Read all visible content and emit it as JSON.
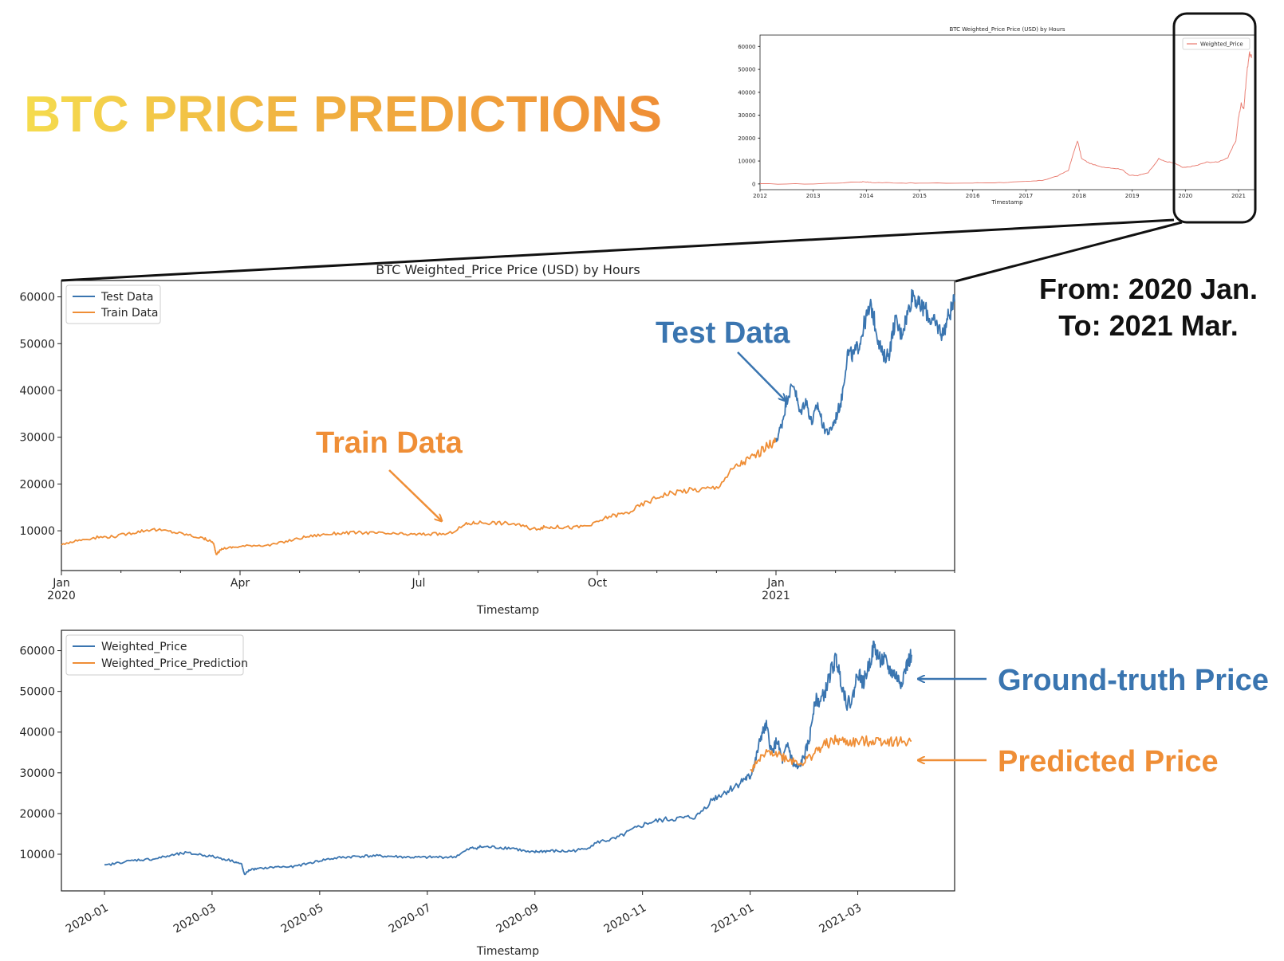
{
  "page": {
    "title": "BTC PRICE PREDICTIONS",
    "range_from": "From: 2020 Jan.",
    "range_to": "To: 2021 Mar."
  },
  "annotations": {
    "test": "Test Data",
    "train": "Train Data",
    "ground_truth": "Ground-truth Price",
    "predicted": "Predicted Price"
  },
  "colors": {
    "blue": "#3a75b0",
    "orange": "#ef8e36",
    "red": "#e8766a",
    "title_start": "#f5dc4e",
    "title_end": "#ef8e36"
  },
  "chart_data": [
    {
      "id": "overview",
      "type": "line",
      "title": "BTC Weighted_Price Price (USD) by Hours",
      "xlabel": "Timestamp",
      "ylabel": "",
      "x_ticks": [
        "2012",
        "2013",
        "2014",
        "2015",
        "2016",
        "2017",
        "2018",
        "2019",
        "2020",
        "2021"
      ],
      "y_ticks": [
        0,
        10000,
        20000,
        30000,
        40000,
        50000,
        60000
      ],
      "xlim": [
        2012.0,
        2021.3
      ],
      "ylim": [
        -2500,
        65000
      ],
      "grid": false,
      "legend": "top-right",
      "series": [
        {
          "name": "Weighted_Price",
          "color": "#e8766a",
          "x": [
            2012.0,
            2013.0,
            2013.85,
            2013.95,
            2014.1,
            2014.5,
            2015.0,
            2016.0,
            2016.5,
            2017.0,
            2017.3,
            2017.6,
            2017.8,
            2017.97,
            2018.05,
            2018.2,
            2018.4,
            2018.6,
            2018.8,
            2018.95,
            2019.1,
            2019.3,
            2019.5,
            2019.6,
            2019.8,
            2019.95,
            2020.0,
            2020.2,
            2020.4,
            2020.6,
            2020.8,
            2020.95,
            2021.0,
            2021.05,
            2021.1,
            2021.15,
            2021.2,
            2021.25
          ],
          "values": [
            5,
            13,
            800,
            1000,
            600,
            500,
            300,
            400,
            600,
            1000,
            1500,
            3500,
            6000,
            19000,
            11000,
            9000,
            7500,
            7000,
            6400,
            3800,
            3600,
            5000,
            11000,
            10000,
            9000,
            7200,
            7200,
            8000,
            9500,
            9500,
            11500,
            19000,
            29000,
            35000,
            33000,
            47000,
            57000,
            55000
          ]
        }
      ]
    },
    {
      "id": "train-test",
      "type": "line",
      "title": "BTC Weighted_Price Price (USD) by Hours",
      "xlabel": "Timestamp",
      "ylabel": "",
      "x_ticks": [
        {
          "t": 0,
          "l1": "Jan",
          "l2": "2020"
        },
        {
          "t": 3,
          "l1": "Apr",
          "l2": ""
        },
        {
          "t": 6,
          "l1": "Jul",
          "l2": ""
        },
        {
          "t": 9,
          "l1": "Oct",
          "l2": ""
        },
        {
          "t": 12,
          "l1": "Jan",
          "l2": "2021"
        }
      ],
      "y_ticks": [
        10000,
        20000,
        30000,
        40000,
        50000,
        60000
      ],
      "xlim": [
        0,
        15
      ],
      "ylim": [
        1500,
        63500
      ],
      "grid": false,
      "legend": "top-left",
      "series": [
        {
          "name": "Test Data",
          "color": "#3a75b0",
          "x": [
            12.0,
            12.1,
            12.2,
            12.3,
            12.4,
            12.5,
            12.6,
            12.7,
            12.8,
            12.9,
            13.0,
            13.1,
            13.2,
            13.3,
            13.4,
            13.5,
            13.6,
            13.7,
            13.8,
            13.9,
            14.0,
            14.1,
            14.2,
            14.3,
            14.4,
            14.5,
            14.6,
            14.7,
            14.8,
            14.9,
            15.0
          ],
          "values": [
            29000,
            33000,
            39000,
            41500,
            35000,
            38000,
            33000,
            37000,
            32000,
            31000,
            34000,
            38000,
            48000,
            47500,
            50000,
            55000,
            58000,
            52000,
            47000,
            48000,
            55000,
            52000,
            56000,
            61000,
            58000,
            57500,
            55000,
            54000,
            52000,
            56000,
            59000
          ]
        },
        {
          "name": "Train Data",
          "color": "#ef8e36",
          "x": [
            0,
            0.3,
            0.6,
            0.9,
            1.2,
            1.5,
            1.8,
            2.1,
            2.4,
            2.55,
            2.6,
            2.7,
            2.9,
            3.2,
            3.5,
            3.8,
            4.1,
            4.4,
            4.7,
            5.0,
            5.3,
            5.6,
            5.9,
            6.2,
            6.5,
            6.8,
            7.0,
            7.3,
            7.6,
            7.9,
            8.1,
            8.3,
            8.6,
            8.9,
            9.2,
            9.5,
            9.8,
            10.1,
            10.4,
            10.7,
            11.0,
            11.3,
            11.5,
            11.7,
            11.9,
            12.0
          ],
          "values": [
            7200,
            8000,
            8600,
            8800,
            9600,
            10300,
            9900,
            9200,
            8300,
            7500,
            5000,
            6200,
            6500,
            6900,
            6900,
            7800,
            8700,
            9200,
            9500,
            9600,
            9500,
            9300,
            9200,
            9300,
            9300,
            11400,
            11800,
            11700,
            11500,
            10400,
            10700,
            10800,
            10700,
            11200,
            13100,
            13800,
            15900,
            17700,
            18500,
            18800,
            19200,
            23500,
            25000,
            26500,
            28500,
            29000
          ]
        }
      ]
    },
    {
      "id": "prediction",
      "type": "line",
      "title": "",
      "xlabel": "Timestamp",
      "ylabel": "",
      "x_ticks": [
        "2020-01",
        "2020-03",
        "2020-05",
        "2020-07",
        "2020-09",
        "2020-11",
        "2021-01",
        "2021-03"
      ],
      "x_tick_pos": [
        0,
        2,
        4,
        6,
        8,
        10,
        12,
        14
      ],
      "y_ticks": [
        10000,
        20000,
        30000,
        40000,
        50000,
        60000
      ],
      "xlim": [
        -0.8,
        15.8
      ],
      "ylim": [
        1000,
        65000
      ],
      "grid": false,
      "legend": "top-left",
      "series": [
        {
          "name": "Weighted_Price",
          "color": "#3a75b0",
          "x": [
            0,
            0.3,
            0.6,
            0.9,
            1.2,
            1.5,
            1.8,
            2.1,
            2.4,
            2.55,
            2.6,
            2.7,
            2.9,
            3.2,
            3.5,
            3.8,
            4.1,
            4.4,
            4.7,
            5.0,
            5.3,
            5.6,
            5.9,
            6.2,
            6.5,
            6.8,
            7.0,
            7.3,
            7.6,
            7.9,
            8.1,
            8.3,
            8.6,
            8.9,
            9.2,
            9.5,
            9.8,
            10.1,
            10.4,
            10.7,
            11.0,
            11.3,
            11.5,
            11.7,
            11.9,
            12.0,
            12.1,
            12.2,
            12.3,
            12.4,
            12.5,
            12.6,
            12.7,
            12.8,
            12.9,
            13.0,
            13.1,
            13.2,
            13.3,
            13.4,
            13.5,
            13.6,
            13.7,
            13.8,
            13.9,
            14.0,
            14.1,
            14.2,
            14.3,
            14.4,
            14.5,
            14.6,
            14.7,
            14.8,
            14.9,
            15.0
          ],
          "values": [
            7200,
            8000,
            8600,
            8800,
            9600,
            10300,
            9900,
            9200,
            8300,
            7500,
            5000,
            6200,
            6500,
            6900,
            6900,
            7800,
            8700,
            9200,
            9500,
            9600,
            9500,
            9300,
            9200,
            9300,
            9300,
            11400,
            11800,
            11700,
            11500,
            10400,
            10700,
            10800,
            10700,
            11200,
            13100,
            13800,
            15900,
            17700,
            18500,
            18800,
            19200,
            23500,
            25000,
            26500,
            28500,
            29000,
            33000,
            39000,
            41500,
            35000,
            38000,
            33000,
            37000,
            32000,
            31000,
            34000,
            38000,
            48000,
            47500,
            50000,
            55000,
            58000,
            52000,
            47000,
            48000,
            55000,
            52000,
            56000,
            61000,
            58000,
            57500,
            55000,
            54000,
            52000,
            56000,
            59000
          ]
        },
        {
          "name": "Weighted_Price_Prediction",
          "color": "#ef8e36",
          "x": [
            12.0,
            12.2,
            12.4,
            12.6,
            12.8,
            13.0,
            13.2,
            13.4,
            13.6,
            13.8,
            14.0,
            14.2,
            14.4,
            14.6,
            14.8,
            15.0
          ],
          "values": [
            30000,
            33500,
            35500,
            34000,
            33000,
            32500,
            35000,
            37000,
            38000,
            37500,
            37500,
            37800,
            38000,
            37800,
            37600,
            37800
          ]
        }
      ]
    }
  ]
}
